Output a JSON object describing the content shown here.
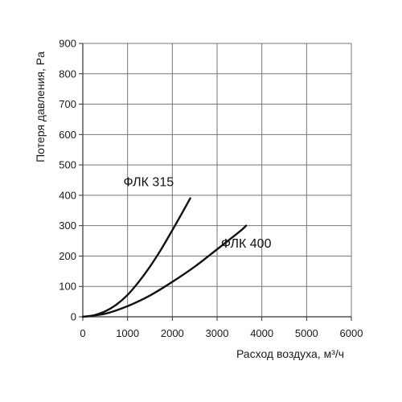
{
  "chart_data": {
    "type": "line",
    "title": "",
    "xlabel": "Расход воздуха, м³/ч",
    "ylabel": "Потеря давления, Pa",
    "xlim": [
      0,
      6000
    ],
    "ylim": [
      0,
      900
    ],
    "x_ticks": [
      "0",
      "1000",
      "2000",
      "3000",
      "4000",
      "5000",
      "6000"
    ],
    "y_ticks": [
      "0",
      "100",
      "200",
      "300",
      "400",
      "500",
      "600",
      "700",
      "800",
      "900"
    ],
    "grid": true,
    "legend": "none",
    "series": [
      {
        "name": "ФЛК 315",
        "x": [
          0,
          250,
          500,
          750,
          1000,
          1250,
          1500,
          1750,
          2000,
          2250,
          2400
        ],
        "y": [
          0,
          5,
          18,
          40,
          72,
          115,
          165,
          222,
          285,
          350,
          390
        ]
      },
      {
        "name": "ФЛК 400",
        "x": [
          0,
          500,
          1000,
          1500,
          2000,
          2500,
          3000,
          3500,
          3650
        ],
        "y": [
          0,
          10,
          35,
          70,
          115,
          165,
          222,
          280,
          300
        ]
      }
    ],
    "series_label_positions": [
      {
        "series": 0,
        "x": 1470,
        "y": 430
      },
      {
        "series": 1,
        "x": 3650,
        "y": 228
      }
    ],
    "colors": {
      "grid": "#777777",
      "axis": "#333333",
      "line": "#111111"
    }
  }
}
